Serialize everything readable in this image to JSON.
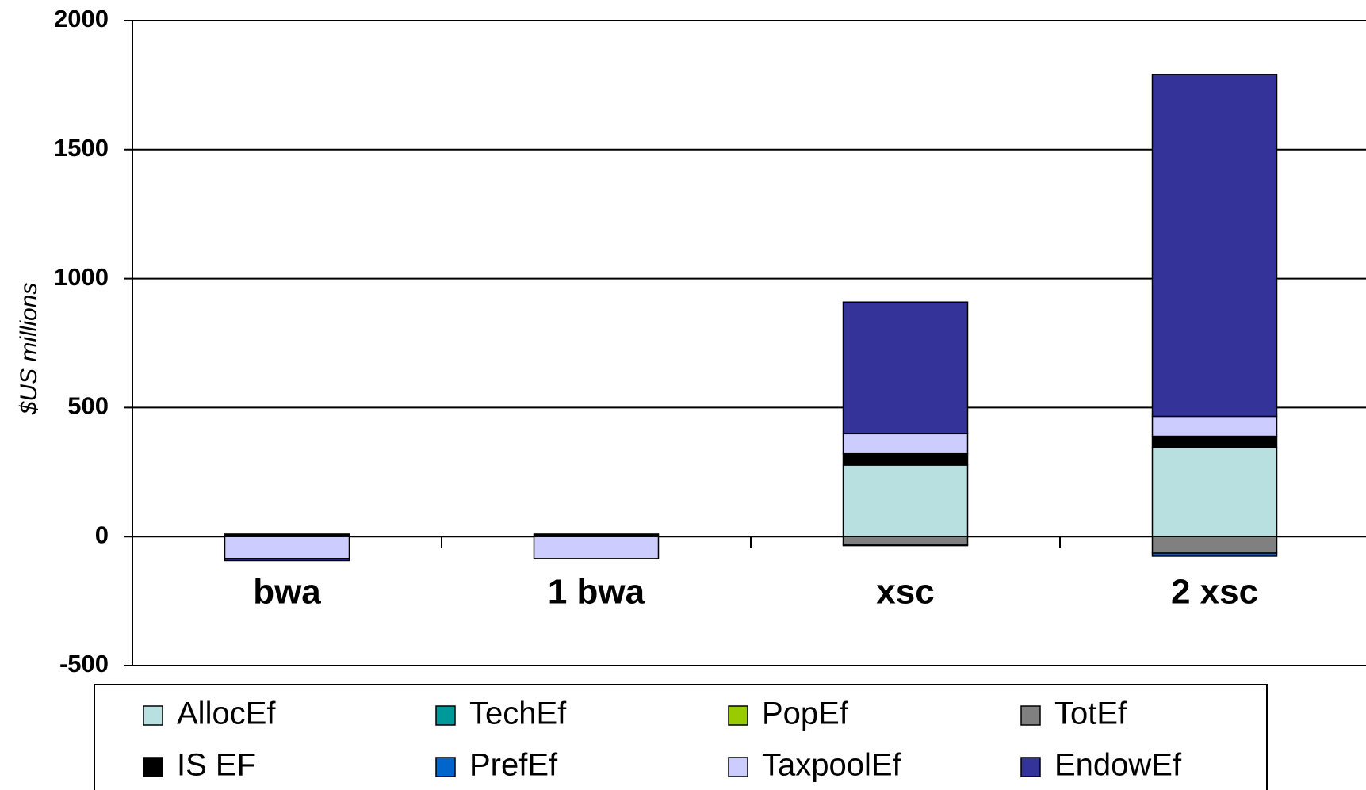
{
  "chart_data": {
    "type": "stacked_bar",
    "ylabel": "$US millions",
    "categories": [
      "bwa",
      "1 bwa",
      "xsc",
      "2 xsc"
    ],
    "series": [
      {
        "name": "AllocEf",
        "color": "#b8e0e0",
        "values": [
          0,
          0,
          277,
          345
        ]
      },
      {
        "name": "TechEf",
        "color": "#009999",
        "values": [
          0,
          0,
          0,
          0
        ]
      },
      {
        "name": "PopEf",
        "color": "#99cc00",
        "values": [
          0,
          0,
          0,
          0
        ]
      },
      {
        "name": "TotEf",
        "color": "#808080",
        "values": [
          0,
          0,
          -30,
          -64
        ]
      },
      {
        "name": "IS EF",
        "color": "#000000",
        "values": [
          10,
          10,
          44,
          44
        ]
      },
      {
        "name": "PrefEf",
        "color": "#0066cc",
        "values": [
          0,
          0,
          -5,
          -12
        ]
      },
      {
        "name": "TaxpoolEf",
        "color": "#ccccff",
        "values": [
          -85,
          -85,
          78,
          77
        ]
      },
      {
        "name": "EndowEf",
        "color": "#333399",
        "values": [
          -8,
          0,
          510,
          1325
        ]
      }
    ],
    "ylim": [
      -500,
      2000
    ],
    "yticks": [
      -500,
      0,
      500,
      1000,
      1500,
      2000
    ],
    "grid": true
  }
}
